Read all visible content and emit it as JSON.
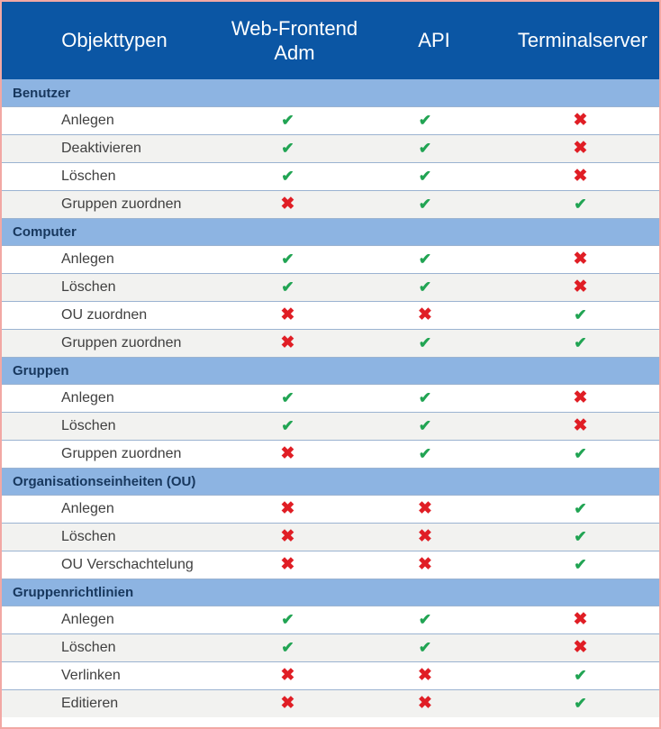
{
  "table": {
    "columns": [
      "Objekttypen",
      "Web-Frontend Adm",
      "API",
      "Terminalserver"
    ],
    "icons": {
      "check": "✔",
      "cross": "✖"
    },
    "colors": {
      "header_bg": "#0b56a4",
      "header_text": "#ffffff",
      "section_bg": "#8db4e2",
      "section_text": "#17375d",
      "row_alt_bg": "#f2f2f0",
      "row_text": "#404040",
      "divider": "#9bb3d1",
      "check": "#21a453",
      "cross": "#e01e25",
      "outer_border": "#f2a8a4"
    },
    "sections": [
      {
        "name": "Benutzer",
        "rows": [
          {
            "label": "Anlegen",
            "values": [
              "check",
              "check",
              "cross"
            ]
          },
          {
            "label": "Deaktivieren",
            "values": [
              "check",
              "check",
              "cross"
            ]
          },
          {
            "label": "Löschen",
            "values": [
              "check",
              "check",
              "cross"
            ]
          },
          {
            "label": "Gruppen zuordnen",
            "values": [
              "cross",
              "check",
              "check"
            ]
          }
        ]
      },
      {
        "name": "Computer",
        "rows": [
          {
            "label": "Anlegen",
            "values": [
              "check",
              "check",
              "cross"
            ]
          },
          {
            "label": "Löschen",
            "values": [
              "check",
              "check",
              "cross"
            ]
          },
          {
            "label": "OU zuordnen",
            "values": [
              "cross",
              "cross",
              "check"
            ]
          },
          {
            "label": "Gruppen zuordnen",
            "values": [
              "cross",
              "check",
              "check"
            ]
          }
        ]
      },
      {
        "name": "Gruppen",
        "rows": [
          {
            "label": "Anlegen",
            "values": [
              "check",
              "check",
              "cross"
            ]
          },
          {
            "label": "Löschen",
            "values": [
              "check",
              "check",
              "cross"
            ]
          },
          {
            "label": "Gruppen zuordnen",
            "values": [
              "cross",
              "check",
              "check"
            ]
          }
        ]
      },
      {
        "name": "Organisationseinheiten (OU)",
        "rows": [
          {
            "label": "Anlegen",
            "values": [
              "cross",
              "cross",
              "check"
            ]
          },
          {
            "label": "Löschen",
            "values": [
              "cross",
              "cross",
              "check"
            ]
          },
          {
            "label": "OU Verschachtelung",
            "values": [
              "cross",
              "cross",
              "check"
            ]
          }
        ]
      },
      {
        "name": "Gruppenrichtlinien",
        "rows": [
          {
            "label": "Anlegen",
            "values": [
              "check",
              "check",
              "cross"
            ]
          },
          {
            "label": "Löschen",
            "values": [
              "check",
              "check",
              "cross"
            ]
          },
          {
            "label": "Verlinken",
            "values": [
              "cross",
              "cross",
              "check"
            ]
          },
          {
            "label": "Editieren",
            "values": [
              "cross",
              "cross",
              "check"
            ]
          }
        ]
      }
    ]
  }
}
